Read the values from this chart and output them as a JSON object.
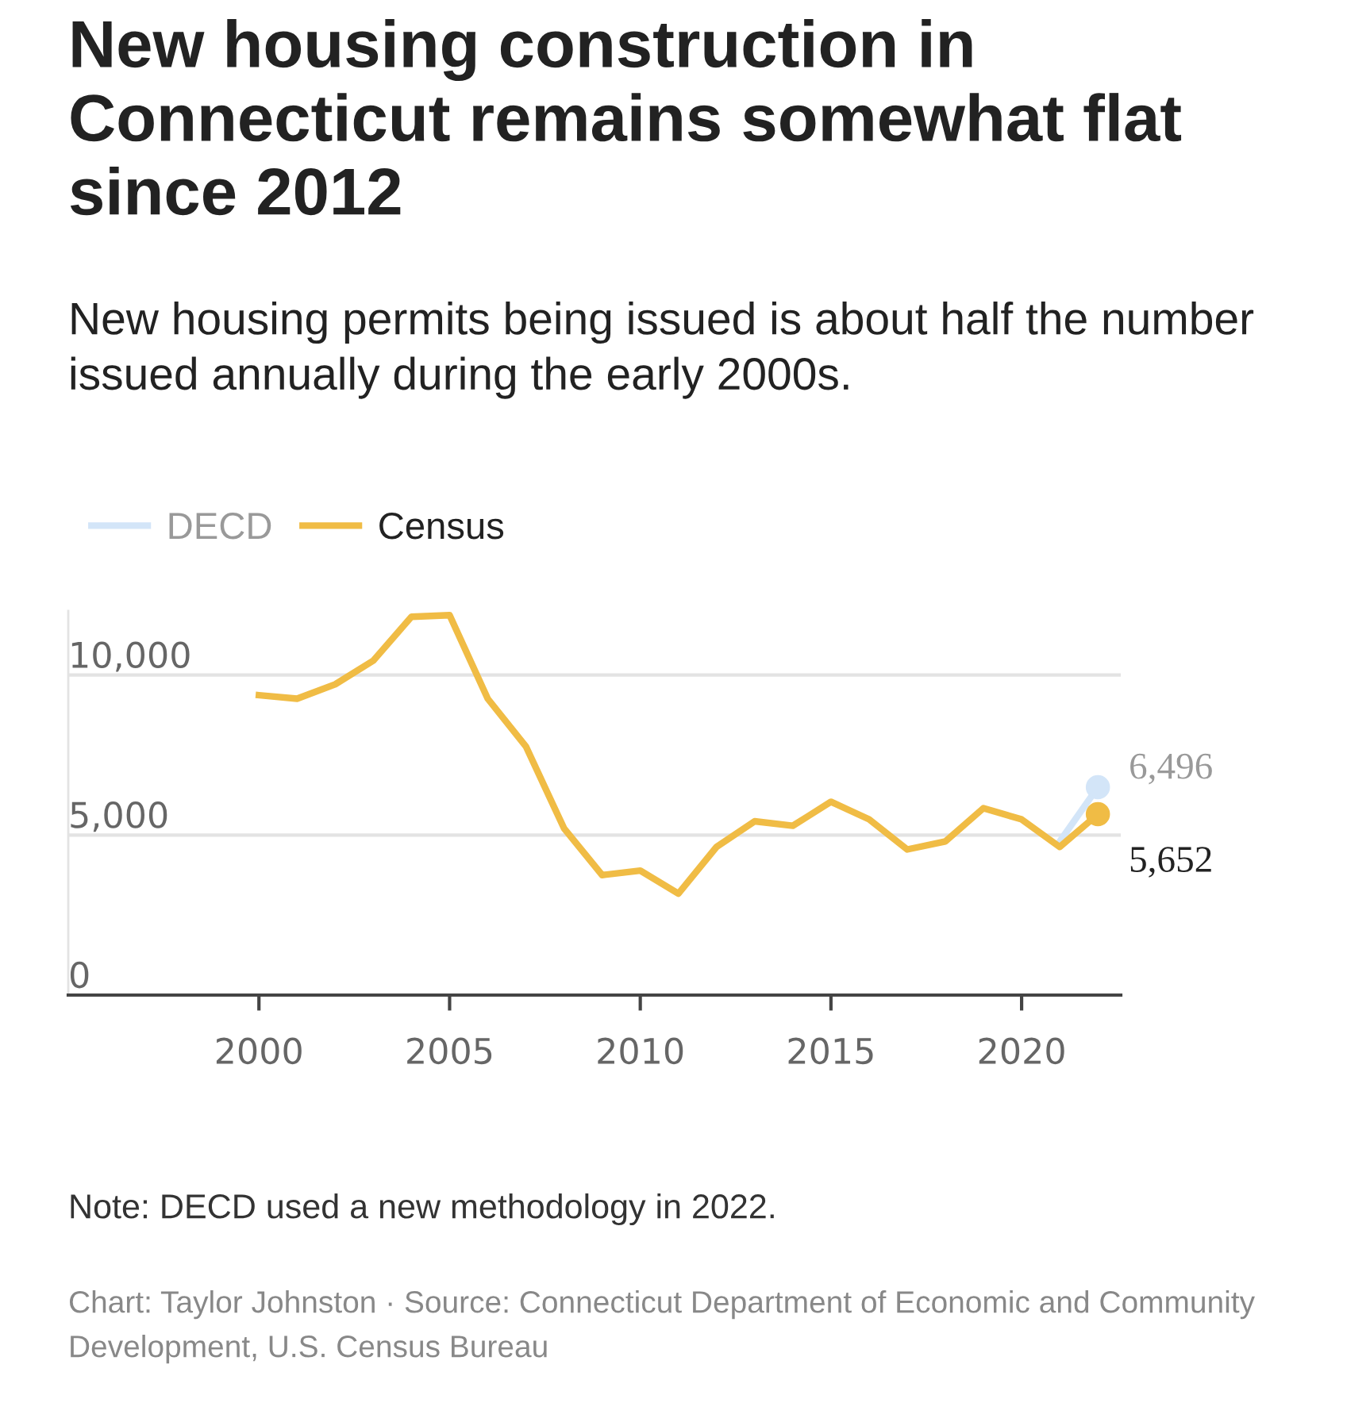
{
  "chart_data": {
    "type": "line",
    "title": "New housing construction in Connecticut remains somewhat flat since 2012",
    "subtitle": "New housing permits being issued is about half the number issued annually during the early 2000s.",
    "x": [
      2000,
      2001,
      2002,
      2003,
      2004,
      2005,
      2006,
      2007,
      2008,
      2009,
      2010,
      2011,
      2012,
      2013,
      2014,
      2015,
      2016,
      2017,
      2018,
      2019,
      2020,
      2021,
      2022
    ],
    "series": [
      {
        "name": "DECD",
        "color": "#d3e5f8",
        "values": [
          null,
          null,
          null,
          null,
          null,
          null,
          null,
          null,
          null,
          null,
          null,
          null,
          null,
          null,
          null,
          null,
          null,
          null,
          null,
          null,
          null,
          4800,
          6496
        ],
        "value_labels": [
          null,
          null,
          null,
          null,
          null,
          null,
          null,
          null,
          null,
          null,
          null,
          null,
          null,
          null,
          null,
          null,
          null,
          null,
          null,
          null,
          null,
          null,
          "6,496"
        ]
      },
      {
        "name": "Census",
        "color": "#f0bc45",
        "values": [
          9370,
          9260,
          9710,
          10450,
          11820,
          11870,
          9260,
          7770,
          5210,
          3750,
          3890,
          3170,
          4630,
          5430,
          5290,
          6040,
          5490,
          4550,
          4800,
          5840,
          5490,
          4630,
          5652
        ],
        "value_labels": [
          null,
          null,
          null,
          null,
          null,
          null,
          null,
          null,
          null,
          null,
          null,
          null,
          null,
          null,
          null,
          null,
          null,
          null,
          null,
          null,
          null,
          null,
          "5,652"
        ]
      }
    ],
    "xlim": [
      1995,
      2022.6
    ],
    "xticks": [
      2000,
      2005,
      2010,
      2015,
      2020
    ],
    "ylim": [
      0,
      12000
    ],
    "yticks": [
      0,
      {
        "value": 5000,
        "label": "5,000"
      },
      {
        "value": 10000,
        "label": "10,000"
      }
    ],
    "grid": "y",
    "legend": "top left",
    "annotations": [
      "Note: DECD used a new methodology in 2022.",
      "Chart: Taylor Johnston · Source: Connecticut Department of Economic and Community Development, U.S. Census Bureau"
    ]
  }
}
